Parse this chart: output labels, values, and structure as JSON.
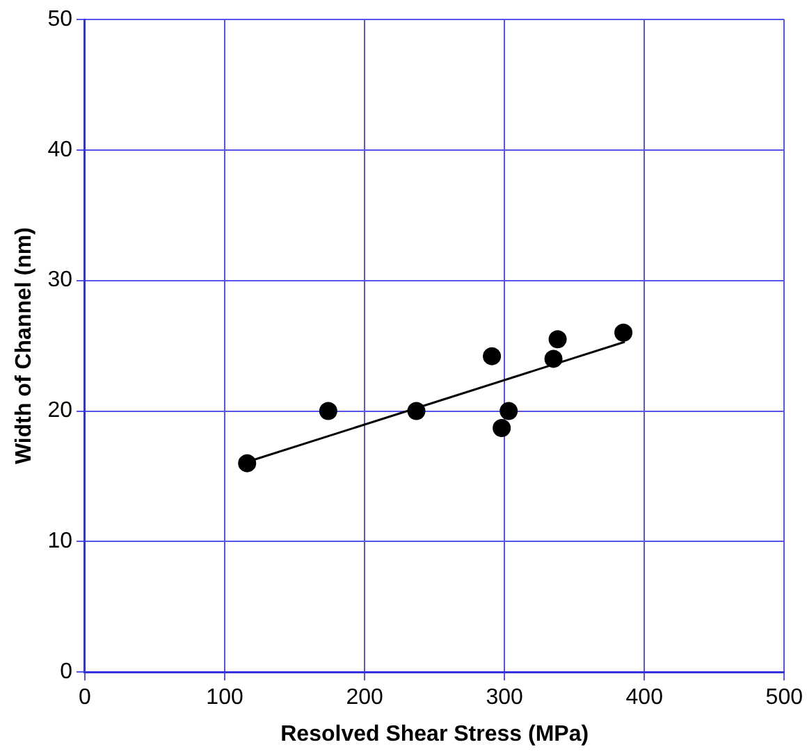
{
  "chart_data": {
    "type": "scatter",
    "xlabel": "Resolved Shear Stress (MPa)",
    "ylabel": "Width of Channel (nm)",
    "xlim": [
      0,
      500
    ],
    "xticks": [
      0,
      100,
      200,
      300,
      400,
      500
    ],
    "ylim": [
      0,
      50
    ],
    "yticks": [
      0,
      10,
      20,
      30,
      40,
      50
    ],
    "grid": true,
    "legend": false,
    "marker": "circle",
    "series": [
      {
        "color": "#000000",
        "x": [
          116,
          174,
          237,
          291,
          298,
          303,
          335,
          338,
          385
        ],
        "values": [
          16,
          20,
          20,
          24.2,
          18.7,
          20,
          24,
          25.5,
          26
        ]
      },
      {
        "type": "line",
        "marker": "none",
        "color": "#000000",
        "x": [
          116,
          386
        ],
        "values": [
          16.1,
          25.3
        ]
      }
    ]
  }
}
